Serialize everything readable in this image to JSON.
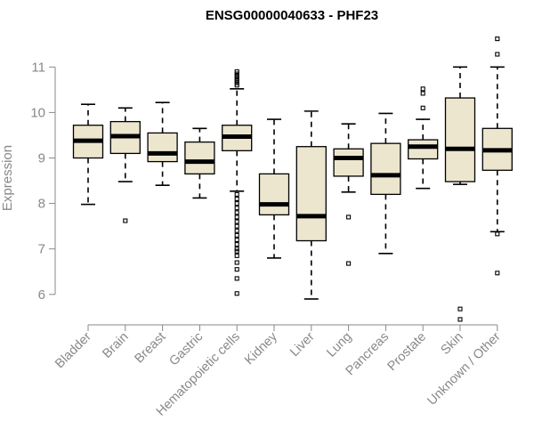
{
  "chart_data": {
    "type": "boxplot",
    "title": "ENSG00000040633 - PHF23",
    "xlabel": "",
    "ylabel": "Expression",
    "ylim": [
      5.3,
      11.8
    ],
    "yticks": [
      6,
      7,
      8,
      9,
      10,
      11
    ],
    "box_fill": "#ede6cf",
    "categories": [
      "Bladder",
      "Brain",
      "Breast",
      "Gastric",
      "Hematopoietic cells",
      "Kidney",
      "Liver",
      "Lung",
      "Pancreas",
      "Prostate",
      "Skin",
      "Unknown / Other"
    ],
    "boxes": [
      {
        "name": "Bladder",
        "whisker_low": 7.98,
        "q1": 9.0,
        "median": 9.38,
        "q3": 9.72,
        "whisker_high": 10.18,
        "outliers": []
      },
      {
        "name": "Brain",
        "whisker_low": 8.48,
        "q1": 9.1,
        "median": 9.48,
        "q3": 9.8,
        "whisker_high": 10.1,
        "outliers": [
          7.62
        ]
      },
      {
        "name": "Breast",
        "whisker_low": 8.4,
        "q1": 8.92,
        "median": 9.1,
        "q3": 9.55,
        "whisker_high": 10.22,
        "outliers": []
      },
      {
        "name": "Gastric",
        "whisker_low": 8.12,
        "q1": 8.65,
        "median": 8.92,
        "q3": 9.35,
        "whisker_high": 9.65,
        "outliers": []
      },
      {
        "name": "Hematopoietic cells",
        "whisker_low": 8.27,
        "q1": 9.16,
        "median": 9.47,
        "q3": 9.72,
        "whisker_high": 10.52,
        "outliers": [
          10.6,
          10.65,
          10.7,
          10.75,
          10.8,
          10.85,
          10.9,
          8.2,
          8.1,
          8.0,
          7.9,
          7.8,
          7.7,
          7.6,
          7.5,
          7.4,
          7.3,
          7.2,
          7.1,
          7.0,
          6.95,
          6.85,
          6.7,
          6.55,
          6.35,
          6.02
        ]
      },
      {
        "name": "Kidney",
        "whisker_low": 6.8,
        "q1": 7.75,
        "median": 7.98,
        "q3": 8.65,
        "whisker_high": 9.85,
        "outliers": []
      },
      {
        "name": "Liver",
        "whisker_low": 5.9,
        "q1": 7.18,
        "median": 7.72,
        "q3": 9.25,
        "whisker_high": 10.03,
        "outliers": []
      },
      {
        "name": "Lung",
        "whisker_low": 8.25,
        "q1": 8.6,
        "median": 9.0,
        "q3": 9.2,
        "whisker_high": 9.75,
        "outliers": [
          7.7,
          6.68
        ]
      },
      {
        "name": "Pancreas",
        "whisker_low": 6.9,
        "q1": 8.2,
        "median": 8.62,
        "q3": 9.32,
        "whisker_high": 9.98,
        "outliers": []
      },
      {
        "name": "Prostate",
        "whisker_low": 8.33,
        "q1": 8.98,
        "median": 9.25,
        "q3": 9.4,
        "whisker_high": 9.85,
        "outliers": [
          10.1,
          10.42,
          10.52
        ]
      },
      {
        "name": "Skin",
        "whisker_low": 8.42,
        "q1": 8.48,
        "median": 9.2,
        "q3": 10.32,
        "whisker_high": 11.0,
        "outliers": [
          5.68,
          5.45
        ]
      },
      {
        "name": "Unknown / Other",
        "whisker_low": 7.38,
        "q1": 8.73,
        "median": 9.17,
        "q3": 9.65,
        "whisker_high": 11.0,
        "outliers": [
          11.62,
          11.28,
          7.33,
          6.47
        ]
      }
    ]
  }
}
